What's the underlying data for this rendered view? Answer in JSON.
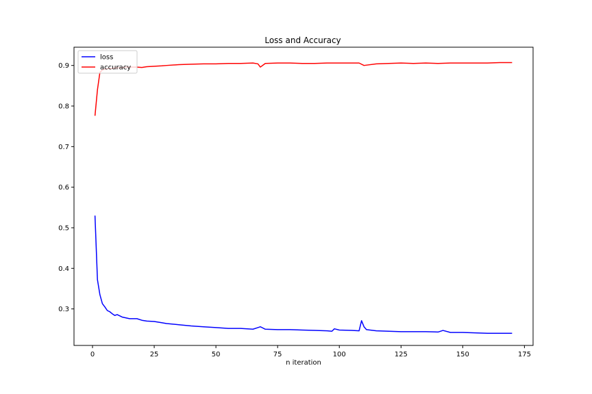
{
  "chart_data": {
    "type": "line",
    "title": "Loss and Accuracy",
    "xlabel": "n iteration",
    "ylabel": "",
    "xlim": [
      -7.5,
      178.5
    ],
    "ylim": [
      0.21,
      0.945
    ],
    "xticks": [
      0,
      25,
      50,
      75,
      100,
      125,
      150,
      175
    ],
    "yticks": [
      0.3,
      0.4,
      0.5,
      0.6,
      0.7,
      0.8,
      0.9
    ],
    "grid": false,
    "legend_position": "upper-left",
    "series": [
      {
        "name": "loss",
        "color": "#0000ff",
        "x": [
          1,
          2,
          3,
          4,
          5,
          6,
          7,
          8,
          9,
          10,
          12,
          15,
          18,
          20,
          22,
          25,
          28,
          30,
          35,
          40,
          45,
          50,
          55,
          60,
          65,
          67,
          68,
          70,
          75,
          80,
          85,
          90,
          95,
          97,
          98,
          100,
          105,
          108,
          109,
          110,
          111,
          115,
          120,
          125,
          130,
          135,
          140,
          142,
          145,
          150,
          155,
          160,
          165,
          170
        ],
        "values": [
          0.53,
          0.372,
          0.335,
          0.313,
          0.305,
          0.296,
          0.293,
          0.288,
          0.284,
          0.286,
          0.28,
          0.276,
          0.276,
          0.272,
          0.27,
          0.269,
          0.266,
          0.264,
          0.261,
          0.258,
          0.256,
          0.254,
          0.252,
          0.252,
          0.25,
          0.254,
          0.256,
          0.25,
          0.249,
          0.249,
          0.248,
          0.247,
          0.246,
          0.245,
          0.251,
          0.248,
          0.247,
          0.246,
          0.271,
          0.256,
          0.249,
          0.246,
          0.245,
          0.244,
          0.244,
          0.244,
          0.243,
          0.247,
          0.242,
          0.242,
          0.241,
          0.24,
          0.24,
          0.24
        ]
      },
      {
        "name": "accuracy",
        "color": "#ff0000",
        "x": [
          1,
          2,
          3,
          4,
          5,
          6,
          7,
          8,
          9,
          10,
          12,
          15,
          18,
          20,
          22,
          25,
          28,
          30,
          35,
          40,
          45,
          50,
          55,
          60,
          65,
          67,
          68,
          70,
          75,
          80,
          85,
          90,
          95,
          100,
          105,
          108,
          110,
          115,
          120,
          125,
          130,
          135,
          140,
          145,
          150,
          155,
          160,
          165,
          170
        ],
        "values": [
          0.776,
          0.84,
          0.883,
          0.889,
          0.891,
          0.892,
          0.893,
          0.893,
          0.894,
          0.894,
          0.895,
          0.896,
          0.896,
          0.895,
          0.897,
          0.898,
          0.899,
          0.9,
          0.902,
          0.903,
          0.904,
          0.904,
          0.905,
          0.905,
          0.906,
          0.904,
          0.896,
          0.905,
          0.906,
          0.906,
          0.905,
          0.905,
          0.906,
          0.906,
          0.906,
          0.906,
          0.9,
          0.904,
          0.905,
          0.906,
          0.905,
          0.906,
          0.905,
          0.906,
          0.906,
          0.906,
          0.906,
          0.907,
          0.907
        ]
      }
    ]
  }
}
